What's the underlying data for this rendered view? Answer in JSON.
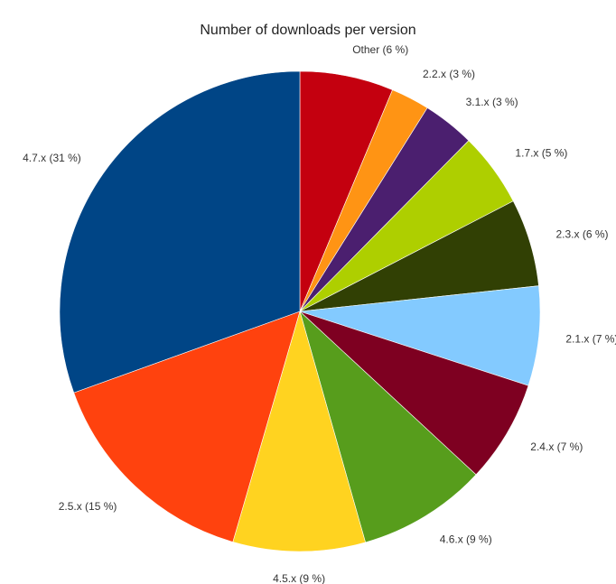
{
  "chart_data": {
    "type": "pie",
    "title": "Number of downloads per version",
    "start": "12 o'clock",
    "direction": "clockwise",
    "slices": [
      {
        "label": "Other (6 %)",
        "category": "Other",
        "value": 6.3,
        "color": "#c4000f"
      },
      {
        "label": "2.2.x (3 %)",
        "category": "2.2.x",
        "value": 2.6,
        "color": "#ff9414"
      },
      {
        "label": "3.1.x (3 %)",
        "category": "3.1.x",
        "value": 3.5,
        "color": "#4b1f6f"
      },
      {
        "label": "1.7.x (5 %)",
        "category": "1.7.x",
        "value": 5.0,
        "color": "#aecf00"
      },
      {
        "label": "2.3.x (6 %)",
        "category": "2.3.x",
        "value": 5.9,
        "color": "#314004"
      },
      {
        "label": "2.1.x (7 %)",
        "category": "2.1.x",
        "value": 6.7,
        "color": "#83caff"
      },
      {
        "label": "2.4.x (7 %)",
        "category": "2.4.x",
        "value": 6.9,
        "color": "#7e0021"
      },
      {
        "label": "4.6.x (9 %)",
        "category": "4.6.x",
        "value": 8.7,
        "color": "#579d1c"
      },
      {
        "label": "4.5.x (9 %)",
        "category": "4.5.x",
        "value": 8.9,
        "color": "#ffd320"
      },
      {
        "label": "2.5.x (15 %)",
        "category": "2.5.x",
        "value": 15.0,
        "color": "#ff420e"
      },
      {
        "label": "4.7.x (31 %)",
        "category": "4.7.x",
        "value": 30.5,
        "color": "#004586"
      }
    ]
  }
}
